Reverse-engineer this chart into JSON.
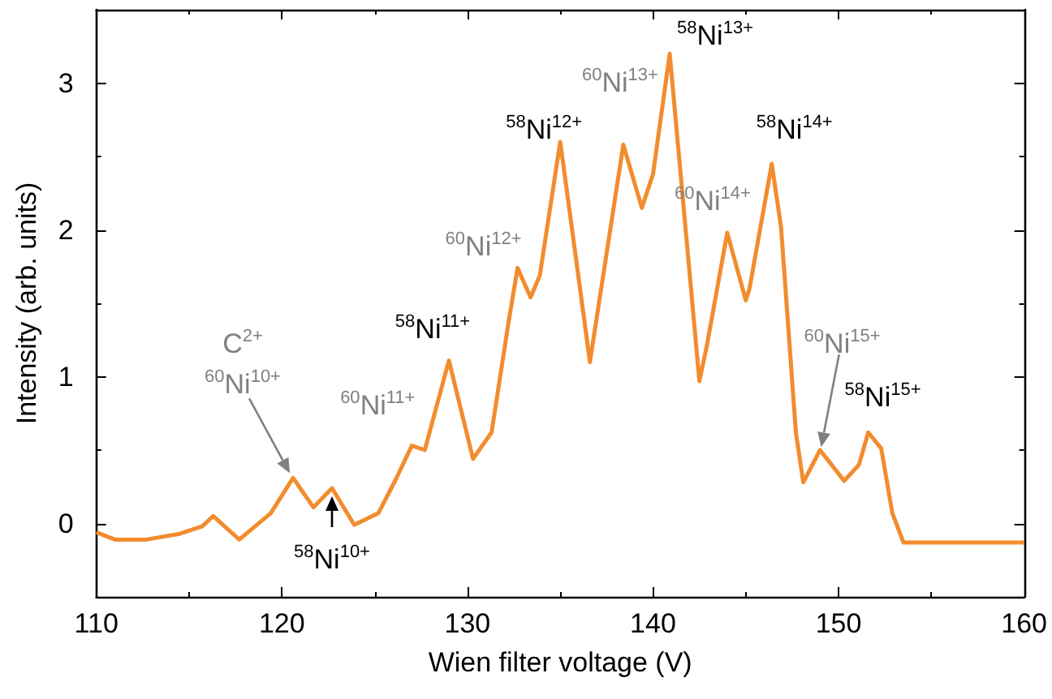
{
  "chart_data": {
    "type": "line",
    "xlabel": "Wien filter voltage (V)",
    "ylabel": "Intensity (arb. units)",
    "xlim": [
      110,
      160
    ],
    "xticks": [
      110,
      120,
      130,
      140,
      150,
      160
    ],
    "ylim": [
      -0.5,
      3.5
    ],
    "yticks": [
      0,
      1,
      2,
      3
    ],
    "grid": false,
    "marker": "none",
    "line_style": "solid",
    "series": [
      {
        "color": "#f28c2e",
        "x": [
          110,
          111,
          112.7,
          114.5,
          115.7,
          116.3,
          117.7,
          119.4,
          120.6,
          121.7,
          122.7,
          123.9,
          125.2,
          126.1,
          127,
          127.7,
          129,
          130.3,
          131.3,
          132.2,
          132.7,
          133.4,
          133.9,
          135,
          136.6,
          138.4,
          139.4,
          140,
          140.9,
          142.5,
          142.9,
          144,
          145,
          145.2,
          146.4,
          146.9,
          147.7,
          148.1,
          149,
          150.3,
          151.1,
          151.6,
          152.3,
          152.9,
          153.5,
          155,
          157,
          160
        ],
        "values": [
          -0.06,
          -0.11,
          -0.11,
          -0.07,
          -0.02,
          0.05,
          -0.11,
          0.07,
          0.31,
          0.11,
          0.24,
          -0.01,
          0.07,
          0.29,
          0.53,
          0.5,
          1.11,
          0.44,
          0.62,
          1.36,
          1.74,
          1.54,
          1.69,
          2.6,
          1.1,
          2.58,
          2.15,
          2.38,
          3.2,
          0.97,
          1.21,
          1.98,
          1.52,
          1.6,
          2.45,
          2.02,
          0.62,
          0.28,
          0.5,
          0.29,
          0.4,
          0.62,
          0.51,
          0.07,
          -0.13,
          -0.13,
          -0.13,
          -0.13
        ]
      }
    ],
    "annotations": [
      "C$^{2+}$",
      {
        "text": "$^{60}$Ni$^{10+}$",
        "x": 120.6,
        "y": 0.31
      },
      {
        "text": "$^{58}$Ni$^{10+}$",
        "x": 122.7,
        "y": 0.24
      },
      {
        "text": "$^{60}$Ni$^{11+}$",
        "x": 127,
        "y": 0.53
      },
      {
        "text": "$^{58}$Ni$^{11+}$",
        "x": 129,
        "y": 1.11
      },
      {
        "text": "$^{60}$Ni$^{12+}$",
        "x": 132.7,
        "y": 1.74
      },
      {
        "text": "$^{58}$Ni$^{12+}$",
        "x": 135,
        "y": 2.6
      },
      {
        "text": "$^{60}$Ni$^{13+}$",
        "x": 138.4,
        "y": 2.58
      },
      {
        "text": "$^{58}$Ni$^{13+}$",
        "x": 140.9,
        "y": 3.2
      },
      {
        "text": "$^{60}$Ni$^{14+}$",
        "x": 144,
        "y": 1.98
      },
      {
        "text": "$^{58}$Ni$^{14+}$",
        "x": 146.4,
        "y": 2.45
      },
      "$^{60}$Ni$^{15+}$",
      {
        "text": "$^{58}$Ni$^{15+}$",
        "x": 151.6,
        "y": 0.62
      }
    ]
  }
}
